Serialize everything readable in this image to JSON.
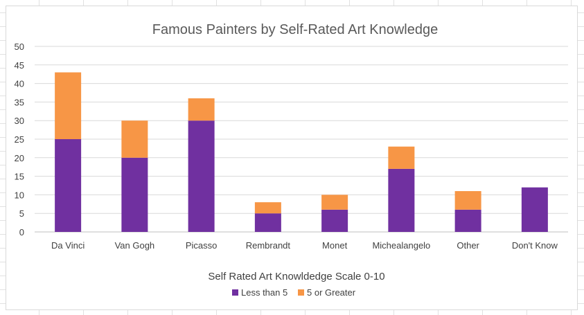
{
  "chart_data": {
    "type": "bar",
    "stacked": true,
    "title": "Famous Painters by Self-Rated Art Knowledge",
    "xlabel": "Self Rated Art Knowldedge Scale 0-10",
    "ylabel": "",
    "categories": [
      "Da Vinci",
      "Van Gogh",
      "Picasso",
      "Rembrandt",
      "Monet",
      "Michealangelo",
      "Other",
      "Don't Know"
    ],
    "series": [
      {
        "name": "Less than 5",
        "color": "#7030a0",
        "values": [
          25,
          20,
          30,
          5,
          6,
          17,
          6,
          12
        ]
      },
      {
        "name": "5 or Greater",
        "color": "#f79646",
        "values": [
          18,
          10,
          6,
          3,
          4,
          6,
          5,
          0
        ]
      }
    ],
    "ylim": [
      0,
      50
    ],
    "yticks": [
      0,
      5,
      10,
      15,
      20,
      25,
      30,
      35,
      40,
      45,
      50
    ],
    "grid": true,
    "legend_position": "bottom"
  }
}
